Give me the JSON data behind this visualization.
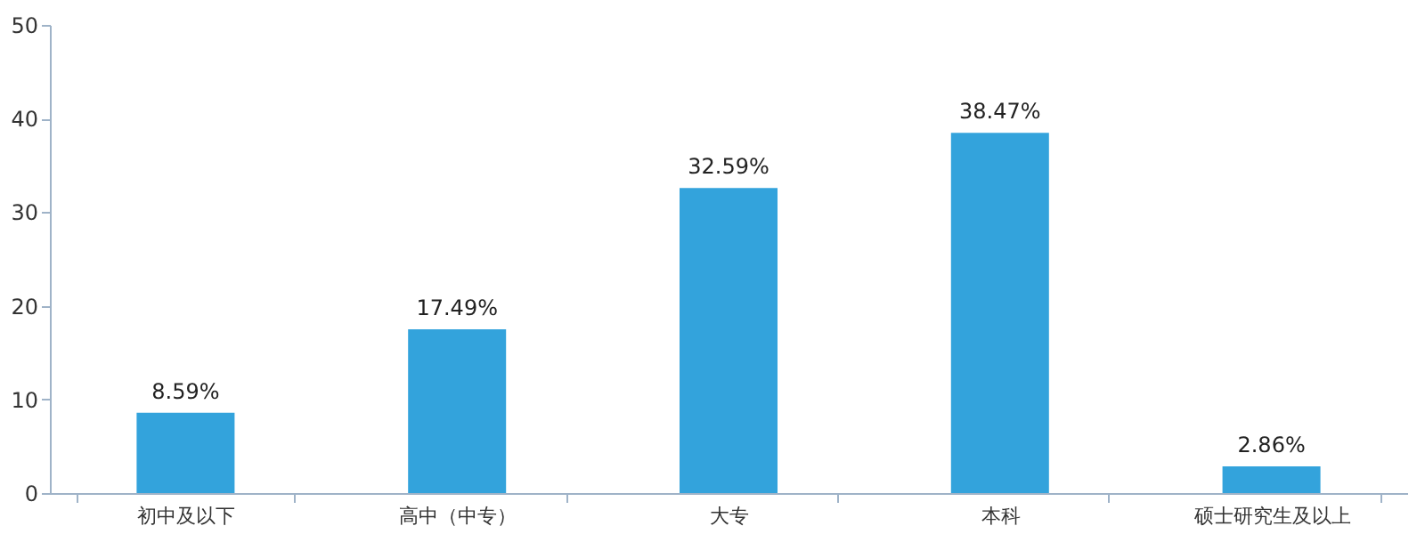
{
  "chart_data": {
    "type": "bar",
    "categories": [
      "初中及以下",
      "高中（中专）",
      "大专",
      "本科",
      "硕士研究生及以上"
    ],
    "values": [
      8.59,
      17.49,
      32.59,
      38.47,
      2.86
    ],
    "value_labels": [
      "8.59%",
      "17.49%",
      "32.59%",
      "38.47%",
      "2.86%"
    ],
    "color": "#33a3dc",
    "ylim": [
      0,
      50
    ],
    "yticks": [
      0,
      10,
      20,
      30,
      40,
      50
    ],
    "grid": false
  }
}
